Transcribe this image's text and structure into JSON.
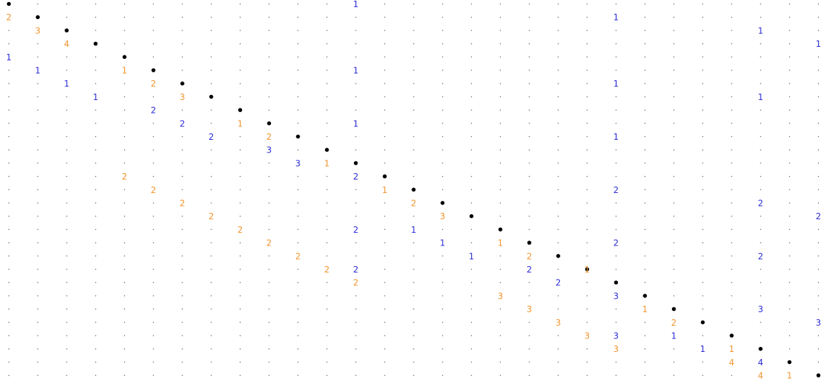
{
  "colors": {
    "background": "#ffffff",
    "grid_dot": "#666666",
    "diagonal": "#000000",
    "lower": "#f0942c",
    "upper": "#2b2bd6"
  },
  "matrix": {
    "size": 28,
    "diagonal": "filled-dot",
    "lower_entries": [
      {
        "row": 1,
        "col": 0,
        "value": "2"
      },
      {
        "row": 2,
        "col": 1,
        "value": "3"
      },
      {
        "row": 3,
        "col": 2,
        "value": "4"
      },
      {
        "row": 5,
        "col": 4,
        "value": "1"
      },
      {
        "row": 6,
        "col": 5,
        "value": "2"
      },
      {
        "row": 7,
        "col": 6,
        "value": "3"
      },
      {
        "row": 9,
        "col": 8,
        "value": "1"
      },
      {
        "row": 10,
        "col": 9,
        "value": "2"
      },
      {
        "row": 12,
        "col": 11,
        "value": "1"
      },
      {
        "row": 13,
        "col": 4,
        "value": "2"
      },
      {
        "row": 14,
        "col": 5,
        "value": "2"
      },
      {
        "row": 14,
        "col": 13,
        "value": "1"
      },
      {
        "row": 15,
        "col": 6,
        "value": "2"
      },
      {
        "row": 15,
        "col": 14,
        "value": "2"
      },
      {
        "row": 16,
        "col": 7,
        "value": "2"
      },
      {
        "row": 16,
        "col": 15,
        "value": "3"
      },
      {
        "row": 17,
        "col": 8,
        "value": "2"
      },
      {
        "row": 18,
        "col": 9,
        "value": "2"
      },
      {
        "row": 18,
        "col": 17,
        "value": "1"
      },
      {
        "row": 19,
        "col": 10,
        "value": "2"
      },
      {
        "row": 19,
        "col": 18,
        "value": "2"
      },
      {
        "row": 20,
        "col": 11,
        "value": "2"
      },
      {
        "row": 20,
        "col": 20,
        "value": "1"
      },
      {
        "row": 21,
        "col": 12,
        "value": "2"
      },
      {
        "row": 22,
        "col": 17,
        "value": "3"
      },
      {
        "row": 23,
        "col": 18,
        "value": "3"
      },
      {
        "row": 23,
        "col": 22,
        "value": "1"
      },
      {
        "row": 24,
        "col": 19,
        "value": "3"
      },
      {
        "row": 24,
        "col": 23,
        "value": "2"
      },
      {
        "row": 25,
        "col": 20,
        "value": "3"
      },
      {
        "row": 26,
        "col": 21,
        "value": "3"
      },
      {
        "row": 26,
        "col": 25,
        "value": "1"
      },
      {
        "row": 27,
        "col": 25,
        "value": "4"
      },
      {
        "row": 28,
        "col": 26,
        "value": "4"
      },
      {
        "row": 28,
        "col": 27,
        "value": "1"
      }
    ],
    "upper_entries": [
      {
        "row": 0,
        "col": 12,
        "value": "1"
      },
      {
        "row": 1,
        "col": 21,
        "value": "1"
      },
      {
        "row": 2,
        "col": 26,
        "value": "1"
      },
      {
        "row": 3,
        "col": 28,
        "value": "1"
      },
      {
        "row": 4,
        "col": 0,
        "value": "1"
      },
      {
        "row": 5,
        "col": 1,
        "value": "1"
      },
      {
        "row": 5,
        "col": 12,
        "value": "1"
      },
      {
        "row": 6,
        "col": 2,
        "value": "1"
      },
      {
        "row": 6,
        "col": 21,
        "value": "1"
      },
      {
        "row": 7,
        "col": 3,
        "value": "1"
      },
      {
        "row": 7,
        "col": 26,
        "value": "1"
      },
      {
        "row": 8,
        "col": 5,
        "value": "2"
      },
      {
        "row": 9,
        "col": 6,
        "value": "2"
      },
      {
        "row": 9,
        "col": 12,
        "value": "1"
      },
      {
        "row": 10,
        "col": 7,
        "value": "2"
      },
      {
        "row": 10,
        "col": 21,
        "value": "1"
      },
      {
        "row": 11,
        "col": 9,
        "value": "3"
      },
      {
        "row": 12,
        "col": 10,
        "value": "3"
      },
      {
        "row": 13,
        "col": 12,
        "value": "2"
      },
      {
        "row": 14,
        "col": 21,
        "value": "2"
      },
      {
        "row": 15,
        "col": 26,
        "value": "2"
      },
      {
        "row": 16,
        "col": 28,
        "value": "2"
      },
      {
        "row": 17,
        "col": 12,
        "value": "2"
      },
      {
        "row": 17,
        "col": 14,
        "value": "1"
      },
      {
        "row": 18,
        "col": 15,
        "value": "1"
      },
      {
        "row": 18,
        "col": 21,
        "value": "2"
      },
      {
        "row": 19,
        "col": 16,
        "value": "1"
      },
      {
        "row": 19,
        "col": 26,
        "value": "2"
      },
      {
        "row": 20,
        "col": 12,
        "value": "2"
      },
      {
        "row": 20,
        "col": 18,
        "value": "2"
      },
      {
        "row": 21,
        "col": 19,
        "value": "2"
      },
      {
        "row": 22,
        "col": 21,
        "value": "3"
      },
      {
        "row": 23,
        "col": 26,
        "value": "3"
      },
      {
        "row": 24,
        "col": 28,
        "value": "3"
      },
      {
        "row": 25,
        "col": 21,
        "value": "3"
      },
      {
        "row": 25,
        "col": 23,
        "value": "1"
      },
      {
        "row": 26,
        "col": 24,
        "value": "1"
      },
      {
        "row": 27,
        "col": 26,
        "value": "4"
      }
    ]
  }
}
